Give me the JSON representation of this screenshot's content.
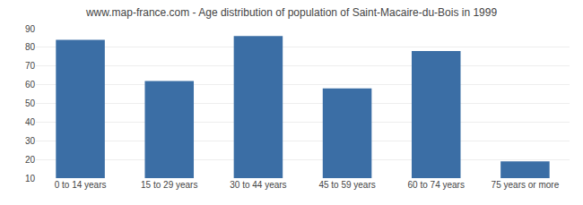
{
  "chart_data": {
    "type": "bar",
    "title": "www.map-france.com - Age distribution of population of Saint-Macaire-du-Bois in 1999",
    "categories": [
      "0 to 14 years",
      "15 to 29 years",
      "30 to 44 years",
      "45 to 59 years",
      "60 to 74 years",
      "75 years or more"
    ],
    "values": [
      84,
      62,
      86,
      58,
      78,
      19
    ],
    "color": "#3b6ea5",
    "ylim": [
      10,
      90
    ],
    "yticks": [
      10,
      20,
      30,
      40,
      50,
      60,
      70,
      80,
      90
    ],
    "grid": true
  }
}
